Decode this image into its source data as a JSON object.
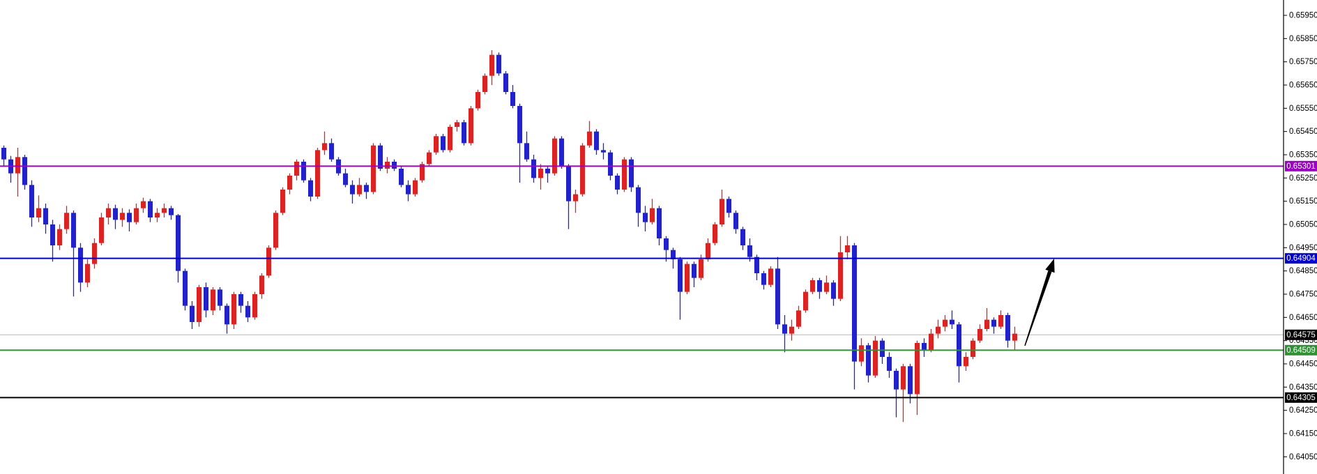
{
  "chart_data": {
    "type": "candlestick",
    "title": "",
    "background": "#ffffff",
    "legend": "none",
    "grid": false,
    "colors": {
      "up_candle": "#dd2222",
      "down_candle": "#2222cc",
      "axis_line": "#000000",
      "tick_text": "#000000",
      "label_text": "#ffffff"
    },
    "y_axis": {
      "side": "right",
      "tick_labels": [
        "0.65950",
        "0.65850",
        "0.65750",
        "0.65650",
        "0.65550",
        "0.65450",
        "0.65350",
        "0.65250",
        "0.65150",
        "0.65050",
        "0.64950",
        "0.64850",
        "0.64750",
        "0.64650",
        "0.64550",
        "0.64450",
        "0.64350",
        "0.64250",
        "0.64150",
        "0.64050"
      ],
      "range_top": 0.6595,
      "range_bottom": 0.6405
    },
    "h_lines": [
      {
        "name": "resistance-purple",
        "label": "0.65301",
        "price": 0.65301,
        "color": "#9c00c4"
      },
      {
        "name": "resistance-blue",
        "label": "0.64904",
        "price": 0.64904,
        "color": "#0000d4"
      },
      {
        "name": "support-green",
        "label": "0.64509",
        "price": 0.64509,
        "color": "#2e9132"
      },
      {
        "name": "support-black",
        "label": "0.64305",
        "price": 0.64305,
        "color": "#000000"
      }
    ],
    "current_price": {
      "label": "0.64575",
      "price": 0.64575,
      "line_color": "#c0c0c0",
      "box_color": "#000000"
    },
    "arrow": {
      "tail": [
        1470,
        496
      ],
      "tip": [
        1512,
        371
      ],
      "color": "#000000"
    },
    "candles": [
      [
        0.6538,
        0.6539,
        0.653,
        0.6533
      ],
      [
        0.6533,
        0.65345,
        0.6523,
        0.6527
      ],
      [
        0.6527,
        0.6538,
        0.6517,
        0.6534
      ],
      [
        0.6534,
        0.6535,
        0.652,
        0.6522
      ],
      [
        0.6522,
        0.6524,
        0.6504,
        0.6508
      ],
      [
        0.6508,
        0.65175,
        0.6506,
        0.6512
      ],
      [
        0.6512,
        0.6514,
        0.6501,
        0.6505
      ],
      [
        0.6505,
        0.6507,
        0.6489,
        0.6496
      ],
      [
        0.6496,
        0.6505,
        0.6494,
        0.6503
      ],
      [
        0.6503,
        0.6513,
        0.6501,
        0.651
      ],
      [
        0.651,
        0.6511,
        0.6474,
        0.6495
      ],
      [
        0.6495,
        0.6497,
        0.6476,
        0.648
      ],
      [
        0.648,
        0.649,
        0.6478,
        0.6488
      ],
      [
        0.6488,
        0.6499,
        0.6486,
        0.6497
      ],
      [
        0.6497,
        0.651,
        0.6496,
        0.6508
      ],
      [
        0.6508,
        0.6514,
        0.6505,
        0.6512
      ],
      [
        0.6512,
        0.65135,
        0.6503,
        0.6507
      ],
      [
        0.6507,
        0.6512,
        0.6504,
        0.651
      ],
      [
        0.651,
        0.65115,
        0.6502,
        0.6506
      ],
      [
        0.6506,
        0.6514,
        0.6505,
        0.6512
      ],
      [
        0.6512,
        0.65165,
        0.651,
        0.6515
      ],
      [
        0.6515,
        0.6516,
        0.6506,
        0.6508
      ],
      [
        0.6508,
        0.6512,
        0.6506,
        0.651
      ],
      [
        0.651,
        0.6514,
        0.6508,
        0.6512
      ],
      [
        0.6512,
        0.6513,
        0.6507,
        0.6509
      ],
      [
        0.6509,
        0.65095,
        0.648,
        0.6485
      ],
      [
        0.6485,
        0.6486,
        0.6468,
        0.647
      ],
      [
        0.647,
        0.6472,
        0.646,
        0.6463
      ],
      [
        0.6463,
        0.6479,
        0.6461,
        0.6478
      ],
      [
        0.6478,
        0.648,
        0.6465,
        0.6468
      ],
      [
        0.6468,
        0.6478,
        0.6466,
        0.6477
      ],
      [
        0.6477,
        0.6478,
        0.6468,
        0.647
      ],
      [
        0.647,
        0.6471,
        0.6458,
        0.6462
      ],
      [
        0.6462,
        0.6476,
        0.646,
        0.6475
      ],
      [
        0.6475,
        0.6476,
        0.6467,
        0.647
      ],
      [
        0.647,
        0.6472,
        0.6463,
        0.6465
      ],
      [
        0.6465,
        0.6476,
        0.6464,
        0.6475
      ],
      [
        0.6475,
        0.6484,
        0.6473,
        0.6483
      ],
      [
        0.6483,
        0.6496,
        0.6482,
        0.6495
      ],
      [
        0.6495,
        0.6511,
        0.6494,
        0.651
      ],
      [
        0.651,
        0.6521,
        0.6509,
        0.652
      ],
      [
        0.652,
        0.6527,
        0.6518,
        0.6526
      ],
      [
        0.6526,
        0.6533,
        0.6524,
        0.6532
      ],
      [
        0.6532,
        0.6533,
        0.6523,
        0.6524
      ],
      [
        0.6524,
        0.6525,
        0.6515,
        0.6517
      ],
      [
        0.6517,
        0.6538,
        0.6516,
        0.6537
      ],
      [
        0.6537,
        0.6545,
        0.6535,
        0.654
      ],
      [
        0.654,
        0.6542,
        0.6532,
        0.6533
      ],
      [
        0.6533,
        0.6534,
        0.6526,
        0.6527
      ],
      [
        0.6527,
        0.6529,
        0.6521,
        0.6522
      ],
      [
        0.6522,
        0.6524,
        0.6514,
        0.6518
      ],
      [
        0.6518,
        0.6525,
        0.6517,
        0.6522
      ],
      [
        0.6522,
        0.6523,
        0.6516,
        0.6519
      ],
      [
        0.6519,
        0.654,
        0.6518,
        0.6539
      ],
      [
        0.6539,
        0.654,
        0.6528,
        0.6529
      ],
      [
        0.6529,
        0.6534,
        0.6527,
        0.6532
      ],
      [
        0.6532,
        0.6533,
        0.6528,
        0.6529
      ],
      [
        0.6529,
        0.653,
        0.6521,
        0.6522
      ],
      [
        0.6522,
        0.6524,
        0.6515,
        0.6518
      ],
      [
        0.6518,
        0.6525,
        0.6517,
        0.6524
      ],
      [
        0.6524,
        0.6532,
        0.6523,
        0.6531
      ],
      [
        0.6531,
        0.6537,
        0.653,
        0.6536
      ],
      [
        0.6536,
        0.6544,
        0.6535,
        0.6543
      ],
      [
        0.6543,
        0.6544,
        0.6536,
        0.6537
      ],
      [
        0.6537,
        0.6548,
        0.6536,
        0.6547
      ],
      [
        0.6547,
        0.655,
        0.6545,
        0.6549
      ],
      [
        0.6549,
        0.655,
        0.6539,
        0.654
      ],
      [
        0.654,
        0.6556,
        0.6539,
        0.6555
      ],
      [
        0.6555,
        0.6563,
        0.6554,
        0.6562
      ],
      [
        0.6562,
        0.657,
        0.6561,
        0.6569
      ],
      [
        0.6569,
        0.658,
        0.6565,
        0.6578
      ],
      [
        0.6578,
        0.6579,
        0.6569,
        0.657
      ],
      [
        0.657,
        0.6571,
        0.6561,
        0.6562
      ],
      [
        0.6562,
        0.6565,
        0.6555,
        0.6556
      ],
      [
        0.6556,
        0.6557,
        0.6523,
        0.654
      ],
      [
        0.654,
        0.6545,
        0.6532,
        0.6533
      ],
      [
        0.6533,
        0.6535,
        0.6523,
        0.6525
      ],
      [
        0.6525,
        0.6531,
        0.652,
        0.6529
      ],
      [
        0.6529,
        0.653,
        0.6523,
        0.6527
      ],
      [
        0.6527,
        0.6543,
        0.6526,
        0.6542
      ],
      [
        0.6542,
        0.6543,
        0.6529,
        0.653
      ],
      [
        0.653,
        0.6531,
        0.6503,
        0.6515
      ],
      [
        0.6515,
        0.652,
        0.651,
        0.6518
      ],
      [
        0.6518,
        0.654,
        0.6517,
        0.6539
      ],
      [
        0.6539,
        0.65495,
        0.6538,
        0.6545
      ],
      [
        0.6545,
        0.6546,
        0.6535,
        0.6537
      ],
      [
        0.6537,
        0.654,
        0.6533,
        0.6536
      ],
      [
        0.6536,
        0.6537,
        0.6524,
        0.6526
      ],
      [
        0.6526,
        0.6527,
        0.6518,
        0.652
      ],
      [
        0.652,
        0.6534,
        0.6519,
        0.6533
      ],
      [
        0.6533,
        0.6534,
        0.6519,
        0.6521
      ],
      [
        0.6521,
        0.6522,
        0.6504,
        0.651
      ],
      [
        0.651,
        0.6513,
        0.6502,
        0.6506
      ],
      [
        0.6506,
        0.6516,
        0.6505,
        0.6512
      ],
      [
        0.6512,
        0.6513,
        0.6496,
        0.6499
      ],
      [
        0.6499,
        0.65,
        0.6489,
        0.6494
      ],
      [
        0.6494,
        0.6495,
        0.6486,
        0.649
      ],
      [
        0.649,
        0.6491,
        0.6464,
        0.6476
      ],
      [
        0.6476,
        0.6489,
        0.6475,
        0.6488
      ],
      [
        0.6488,
        0.6489,
        0.6478,
        0.6482
      ],
      [
        0.6482,
        0.6492,
        0.6481,
        0.649
      ],
      [
        0.649,
        0.6499,
        0.6489,
        0.6497
      ],
      [
        0.6497,
        0.6506,
        0.6496,
        0.6505
      ],
      [
        0.6505,
        0.652,
        0.6504,
        0.6516
      ],
      [
        0.6516,
        0.6517,
        0.6508,
        0.651
      ],
      [
        0.651,
        0.6511,
        0.6501,
        0.6503
      ],
      [
        0.6503,
        0.6504,
        0.6494,
        0.6496
      ],
      [
        0.6496,
        0.6499,
        0.6489,
        0.6491
      ],
      [
        0.6491,
        0.6492,
        0.6481,
        0.6484
      ],
      [
        0.6484,
        0.6485,
        0.6477,
        0.6479
      ],
      [
        0.6479,
        0.6487,
        0.6478,
        0.6486
      ],
      [
        0.6486,
        0.6491,
        0.646,
        0.6462
      ],
      [
        0.6462,
        0.6466,
        0.645,
        0.6458
      ],
      [
        0.6458,
        0.6464,
        0.6455,
        0.6461
      ],
      [
        0.6461,
        0.647,
        0.646,
        0.6468
      ],
      [
        0.6468,
        0.6477,
        0.6467,
        0.6476
      ],
      [
        0.6476,
        0.6482,
        0.6475,
        0.6481
      ],
      [
        0.6481,
        0.6482,
        0.6473,
        0.6476
      ],
      [
        0.6476,
        0.6483,
        0.6475,
        0.648
      ],
      [
        0.648,
        0.6481,
        0.647,
        0.6473
      ],
      [
        0.6473,
        0.65,
        0.6472,
        0.6493
      ],
      [
        0.6493,
        0.65,
        0.649,
        0.6496
      ],
      [
        0.6496,
        0.6497,
        0.6434,
        0.6446
      ],
      [
        0.6446,
        0.6456,
        0.6444,
        0.6453
      ],
      [
        0.6453,
        0.6454,
        0.6437,
        0.644
      ],
      [
        0.644,
        0.6457,
        0.6439,
        0.6455
      ],
      [
        0.6455,
        0.6456,
        0.6445,
        0.6448
      ],
      [
        0.6448,
        0.645,
        0.6439,
        0.6442
      ],
      [
        0.6442,
        0.6443,
        0.6422,
        0.6434
      ],
      [
        0.6434,
        0.6445,
        0.642,
        0.6444
      ],
      [
        0.6444,
        0.6445,
        0.6428,
        0.6432
      ],
      [
        0.6432,
        0.6455,
        0.6423,
        0.6454
      ],
      [
        0.6454,
        0.6456,
        0.6448,
        0.6451
      ],
      [
        0.6451,
        0.646,
        0.645,
        0.6458
      ],
      [
        0.6458,
        0.6464,
        0.6456,
        0.6461
      ],
      [
        0.6461,
        0.6466,
        0.6459,
        0.6464
      ],
      [
        0.6464,
        0.6468,
        0.646,
        0.6462
      ],
      [
        0.6462,
        0.6463,
        0.6437,
        0.6444
      ],
      [
        0.6444,
        0.645,
        0.6442,
        0.6448
      ],
      [
        0.6448,
        0.6456,
        0.6447,
        0.6455
      ],
      [
        0.6455,
        0.6462,
        0.6454,
        0.646
      ],
      [
        0.646,
        0.6469,
        0.6459,
        0.6464
      ],
      [
        0.6464,
        0.6465,
        0.6458,
        0.6461
      ],
      [
        0.6461,
        0.6468,
        0.646,
        0.6466
      ],
      [
        0.6466,
        0.6467,
        0.6452,
        0.6455
      ],
      [
        0.6455,
        0.6461,
        0.6451,
        0.6458
      ]
    ]
  }
}
